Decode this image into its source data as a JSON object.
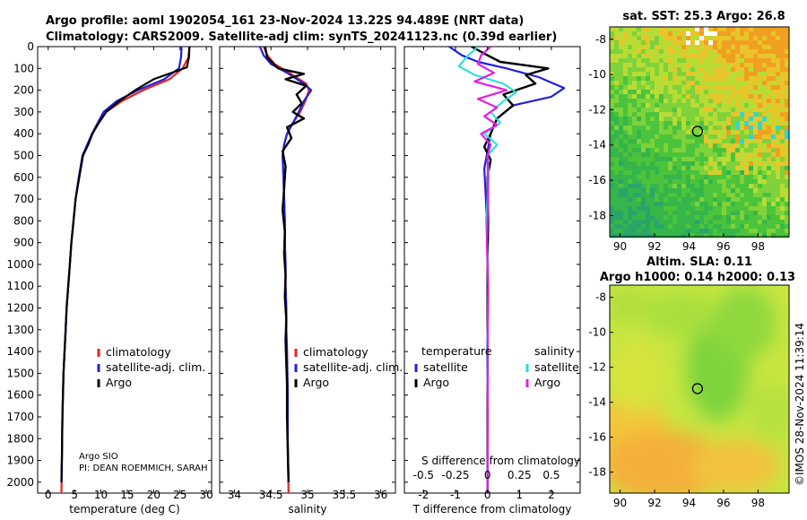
{
  "title_line1": "Argo profile: aoml 1902054_161 23-Nov-2024 13.22S 94.489E (NRT data)",
  "title_line2": "Climatology: CARS2009. Satellite-adj clim: synTS_20241123.nc (0.39d earlier)",
  "depth_ticks": [
    0,
    100,
    200,
    300,
    400,
    500,
    600,
    700,
    800,
    900,
    1000,
    1100,
    1200,
    1300,
    1400,
    1500,
    1600,
    1700,
    1800,
    1900,
    2000
  ],
  "colors": {
    "clim": "#e8221a",
    "sat": "#1f1fe0",
    "argo": "#000000",
    "sat_sal": "#22dede",
    "argo_sal": "#e31ee3"
  },
  "chart_data": [
    {
      "type": "line",
      "id": "temperature",
      "xlabel": "temperature (deg C)",
      "xlim": [
        -2,
        31
      ],
      "ylim": [
        2050,
        0
      ],
      "xticks": [
        0,
        5,
        10,
        15,
        20,
        25,
        30
      ],
      "xticklabels": [
        "0",
        "5",
        "10",
        "15",
        "20",
        "25",
        "30"
      ],
      "legend": [
        "climatology",
        "satellite-adj. clim.",
        "Argo"
      ],
      "series": [
        {
          "name": "climatology",
          "color_key": "clim",
          "width": 2.2,
          "x": [
            26.8,
            26.6,
            25.5,
            23,
            18,
            14,
            11,
            9.6,
            8.3,
            7.5,
            6.5,
            5.8,
            5.2,
            4.8,
            4.4,
            4.1,
            3.8,
            3.5,
            3.3,
            3.1,
            2.9,
            2.7,
            2.6,
            2.5
          ],
          "y": [
            0,
            50,
            100,
            150,
            200,
            250,
            300,
            350,
            400,
            450,
            500,
            600,
            700,
            800,
            900,
            1000,
            1100,
            1200,
            1300,
            1400,
            1500,
            1700,
            1900,
            2050
          ]
        },
        {
          "name": "satellite-adj. clim.",
          "color_key": "sat",
          "width": 2.2,
          "x": [
            25.3,
            25.2,
            24.8,
            22,
            17,
            13,
            10.5,
            9.4,
            8.3,
            7.4,
            6.5,
            5.8,
            5.2,
            4.8,
            4.4,
            4.1,
            3.8,
            3.5,
            3.3,
            3.1,
            2.9,
            2.7,
            2.6,
            2.5
          ],
          "y": [
            0,
            50,
            100,
            150,
            200,
            250,
            300,
            350,
            400,
            450,
            500,
            600,
            700,
            800,
            900,
            1000,
            1100,
            1200,
            1300,
            1400,
            1500,
            1700,
            1900,
            2000
          ]
        },
        {
          "name": "Argo",
          "color_key": "argo",
          "width": 2.2,
          "x": [
            26.8,
            26.7,
            26.3,
            20,
            16.5,
            13.5,
            11,
            9.6,
            8.4,
            7.6,
            6.6,
            5.9,
            5.2,
            4.8,
            4.4,
            4.1,
            3.8,
            3.5,
            3.3,
            3.1,
            2.9,
            2.7,
            2.6,
            2.5
          ],
          "y": [
            0,
            50,
            95,
            150,
            200,
            250,
            300,
            350,
            400,
            450,
            500,
            600,
            700,
            800,
            900,
            1000,
            1100,
            1200,
            1300,
            1400,
            1500,
            1700,
            1900,
            2000
          ]
        }
      ]
    },
    {
      "type": "line",
      "id": "salinity",
      "xlabel": "salinity",
      "xlim": [
        33.8,
        36.2
      ],
      "ylim": [
        2050,
        0
      ],
      "xticks": [
        34,
        34.5,
        35,
        35.5,
        36
      ],
      "xticklabels": [
        "34",
        "34.5",
        "35",
        "35.5",
        "36"
      ],
      "legend": [
        "climatology",
        "satellite-adj. clim.",
        "Argo"
      ],
      "series": [
        {
          "name": "climatology",
          "color_key": "clim",
          "width": 2.2,
          "x": [
            34.4,
            34.45,
            34.55,
            34.75,
            34.98,
            35.02,
            34.97,
            34.9,
            34.8,
            34.72,
            34.68,
            34.66,
            34.67,
            34.68,
            34.69,
            34.69,
            34.7,
            34.7,
            34.71,
            34.71,
            34.72,
            34.73,
            34.73,
            34.74
          ],
          "y": [
            0,
            40,
            80,
            120,
            170,
            200,
            250,
            300,
            350,
            400,
            450,
            500,
            600,
            700,
            800,
            900,
            1000,
            1100,
            1200,
            1300,
            1400,
            1600,
            1800,
            2050
          ]
        },
        {
          "name": "satellite-adj. clim.",
          "color_key": "sat",
          "width": 2.2,
          "x": [
            34.35,
            34.4,
            34.5,
            34.72,
            34.95,
            35.05,
            34.95,
            34.88,
            34.8,
            34.72,
            34.68,
            34.66,
            34.67,
            34.68,
            34.69,
            34.69,
            34.7,
            34.7,
            34.71,
            34.71,
            34.72,
            34.73,
            34.73,
            34.74
          ],
          "y": [
            0,
            40,
            80,
            120,
            170,
            200,
            250,
            300,
            350,
            400,
            450,
            500,
            600,
            700,
            800,
            900,
            1000,
            1100,
            1200,
            1300,
            1400,
            1600,
            1800,
            2000
          ]
        },
        {
          "name": "Argo",
          "color_key": "argo",
          "width": 2.4,
          "x": [
            34.42,
            34.45,
            34.6,
            34.95,
            34.7,
            34.98,
            34.85,
            34.92,
            34.8,
            34.95,
            34.72,
            34.78,
            34.66,
            34.7,
            34.68,
            34.66,
            34.69,
            34.68,
            34.7,
            34.69,
            34.71,
            34.7,
            34.71,
            34.72,
            34.72,
            34.73,
            34.74
          ],
          "y": [
            0,
            50,
            100,
            125,
            150,
            180,
            220,
            260,
            300,
            330,
            370,
            420,
            480,
            550,
            650,
            750,
            850,
            950,
            1050,
            1150,
            1250,
            1350,
            1450,
            1550,
            1700,
            1850,
            2000
          ]
        }
      ]
    },
    {
      "type": "line",
      "id": "difference",
      "xlabel": "T difference from climatology",
      "overlay_label": "S difference from climatology",
      "xlim": [
        -2.6,
        2.9
      ],
      "ylim": [
        2050,
        0
      ],
      "xticks": [
        -2,
        -1,
        0,
        1,
        2
      ],
      "xticklabels": [
        "-2",
        "-1",
        "0",
        "1",
        "2"
      ],
      "xticks_top_inner": [
        -0.5,
        -0.25,
        0,
        0.25,
        0.5
      ],
      "xticklabels_top_inner": [
        "-0.5",
        "-0.25",
        "0",
        "0.25",
        "0.5"
      ],
      "legend_temperature_title": "temperature",
      "legend_salinity_title": "salinity",
      "legend_temperature": [
        "satellite",
        "Argo"
      ],
      "legend_salinity": [
        "satellite",
        "Argo"
      ],
      "series": [
        {
          "name": "temperature satellite",
          "color_key": "sat",
          "width": 2.2,
          "x": [
            -1.2,
            -0.8,
            -0.3,
            0.6,
            1.6,
            2.4,
            2.0,
            0.8,
            0.3,
            0.1,
            0.0,
            -0.1,
            -0.05,
            0,
            0.02,
            0,
            0,
            0,
            0,
            0,
            0,
            0
          ],
          "y": [
            0,
            40,
            70,
            100,
            140,
            190,
            230,
            270,
            330,
            400,
            480,
            560,
            700,
            900,
            1100,
            1300,
            1500,
            1700,
            1900,
            2000,
            2030,
            2050
          ]
        },
        {
          "name": "temperature Argo",
          "color_key": "argo",
          "width": 2.4,
          "x": [
            -0.5,
            0,
            0.4,
            1.9,
            1.2,
            1.5,
            0.5,
            0.8,
            0.3,
            0.1,
            -0.1,
            0.1,
            0,
            0.02,
            0,
            0,
            0,
            0,
            0,
            0
          ],
          "y": [
            0,
            40,
            70,
            100,
            130,
            170,
            220,
            270,
            330,
            400,
            460,
            520,
            600,
            800,
            1000,
            1200,
            1500,
            1800,
            2000,
            2050
          ]
        },
        {
          "name": "salinity satellite",
          "color_key": "sat_sal",
          "width": 2.0,
          "x": [
            -0.3,
            -0.6,
            -0.9,
            -0.4,
            0.5,
            0.9,
            0.5,
            0.1,
            0.4,
            -0.1,
            0.3,
            0,
            0.05,
            -0.05,
            0.02,
            0.03,
            -0.02,
            0.02,
            0,
            0
          ],
          "y": [
            0,
            40,
            90,
            130,
            170,
            210,
            250,
            300,
            350,
            400,
            450,
            500,
            600,
            800,
            1000,
            1200,
            1400,
            1700,
            2000,
            2050
          ]
        },
        {
          "name": "salinity Argo",
          "color_key": "argo_sal",
          "width": 2.2,
          "x": [
            0.1,
            -0.2,
            -0.3,
            0.2,
            -0.4,
            0.6,
            -0.3,
            0.3,
            -0.1,
            0.3,
            -0.2,
            0.1,
            0,
            0.02,
            -0.02,
            0.02,
            0,
            0.01,
            0,
            0
          ],
          "y": [
            0,
            40,
            80,
            120,
            160,
            200,
            240,
            280,
            320,
            360,
            400,
            450,
            500,
            700,
            900,
            1100,
            1400,
            1700,
            2000,
            2050
          ]
        }
      ]
    },
    {
      "type": "heatmap",
      "id": "sst_map",
      "title": "sat. SST: 25.3 Argo: 26.8",
      "xlim": [
        89.4,
        99.8
      ],
      "ylim": [
        -19.2,
        -7.3
      ],
      "xticks": [
        90,
        92,
        94,
        96,
        98
      ],
      "xticklabels": [
        "90",
        "92",
        "94",
        "96",
        "98"
      ],
      "yticks": [
        -8,
        -10,
        -12,
        -14,
        -16,
        -18
      ],
      "yticklabels": [
        "-8",
        "-10",
        "-12",
        "-14",
        "-16",
        "-18"
      ],
      "marker": {
        "lon": 94.489,
        "lat": -13.22
      }
    },
    {
      "type": "heatmap",
      "id": "sla_map",
      "title_line1": "Altim. SLA: 0.11",
      "title_line2": "Argo h1000: 0.14 h2000: 0.13",
      "xlim": [
        89.4,
        99.8
      ],
      "ylim": [
        -19.2,
        -7.3
      ],
      "xticks": [
        90,
        92,
        94,
        96,
        98
      ],
      "xticklabels": [
        "90",
        "92",
        "94",
        "96",
        "98"
      ],
      "yticks": [
        -8,
        -10,
        -12,
        -14,
        -16,
        -18
      ],
      "yticklabels": [
        "-8",
        "-10",
        "-12",
        "-14",
        "-16",
        "-18"
      ],
      "marker": {
        "lon": 94.489,
        "lat": -13.22
      }
    }
  ],
  "credit_line1": "Argo SIO",
  "credit_line2": "PI: DEAN ROEMMICH, SARAH",
  "watermark": "©IMOS 28-Nov-2024 11:39:14"
}
